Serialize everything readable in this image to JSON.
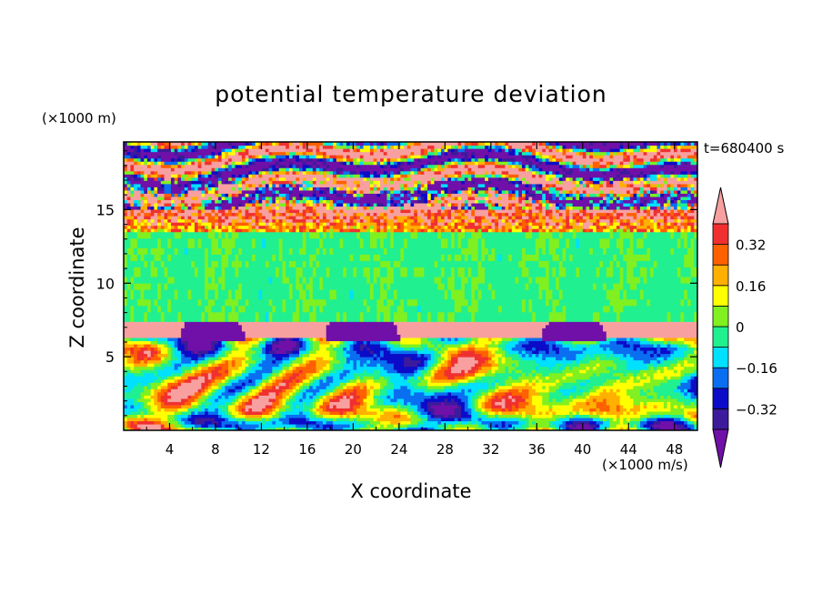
{
  "chart_data": {
    "type": "heatmap",
    "title": "potential temperature deviation",
    "xlabel": "X coordinate",
    "ylabel": "Z coordinate",
    "x_unit": "(×1000 m/s)",
    "y_unit": "(×1000 m)",
    "time_label": "t=680400 s",
    "xlim": [
      0,
      50
    ],
    "ylim": [
      0,
      19.6
    ],
    "x_ticks": [
      4,
      8,
      12,
      16,
      20,
      24,
      28,
      32,
      36,
      40,
      44,
      48
    ],
    "y_ticks": [
      5,
      10,
      15
    ],
    "colorbar": {
      "levels": [
        -0.4,
        -0.32,
        -0.24,
        -0.16,
        -0.08,
        0,
        0.08,
        0.16,
        0.24,
        0.32,
        0.4
      ],
      "tick_labels": [
        "0.32",
        "0.16",
        "0",
        "−0.16",
        "−0.32"
      ],
      "tick_values": [
        0.32,
        0.16,
        0,
        -0.16,
        -0.32
      ],
      "colors": [
        "#7010a8",
        "#3c1a9c",
        "#0c0cc8",
        "#0a6ef0",
        "#00e0ff",
        "#20f090",
        "#80f020",
        "#ffff00",
        "#ffb000",
        "#ff6000",
        "#f03030",
        "#f8a0a0"
      ]
    },
    "fields": {
      "stratosphere_mean": {
        "z_range": [
          15,
          19.6
        ],
        "pattern": "alternating pink/purple banded noise"
      },
      "upper_layer": {
        "z_range": [
          7.5,
          13.5
        ],
        "value": -0.02
      },
      "inversion_layer": {
        "z_range": [
          6.3,
          7.5
        ],
        "value": 0.45
      },
      "lower_layer": {
        "z_range": [
          0,
          6.3
        ],
        "pattern": "turbulent eddies"
      }
    },
    "cold_bumps": [
      {
        "x_start": 5,
        "x_end": 10.5
      },
      {
        "x_start": 17.5,
        "x_end": 24
      },
      {
        "x_start": 36.5,
        "x_end": 42
      }
    ]
  }
}
